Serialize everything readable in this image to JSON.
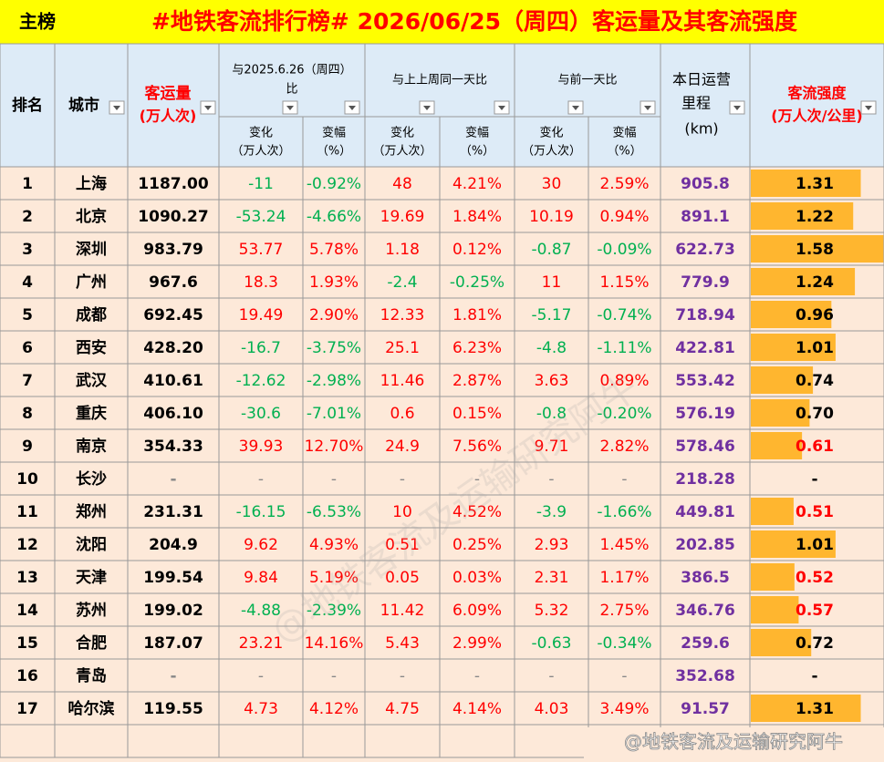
{
  "header": {
    "tag": "主榜",
    "title": "#地铁客流排行榜# 2026/06/25（周四）客运量及其客流强度"
  },
  "table": {
    "columns": {
      "rank": "排名",
      "city": "城市",
      "volume": [
        "客运量",
        "(万人次)"
      ],
      "yoy": [
        "与2025.6.26（周四）",
        "比"
      ],
      "wow": "与上上周同一天比",
      "dod": "与前一天比",
      "change": [
        "变化",
        "（万人次）"
      ],
      "pct": [
        "变幅",
        "（%）"
      ],
      "length": [
        "本日运营",
        "里程",
        "(km)"
      ],
      "intensity": [
        "客流强度",
        "(万人次/公里)"
      ]
    },
    "rows": [
      [
        "1",
        "上海",
        "1187.00",
        "-11",
        "-0.92%",
        "48",
        "4.21%",
        "30",
        "2.59%",
        "905.8",
        "1.31"
      ],
      [
        "2",
        "北京",
        "1090.27",
        "-53.24",
        "-4.66%",
        "19.69",
        "1.84%",
        "10.19",
        "0.94%",
        "891.1",
        "1.22"
      ],
      [
        "3",
        "深圳",
        "983.79",
        "53.77",
        "5.78%",
        "1.18",
        "0.12%",
        "-0.87",
        "-0.09%",
        "622.73",
        "1.58"
      ],
      [
        "4",
        "广州",
        "967.6",
        "18.3",
        "1.93%",
        "-2.4",
        "-0.25%",
        "11",
        "1.15%",
        "779.9",
        "1.24"
      ],
      [
        "5",
        "成都",
        "692.45",
        "19.49",
        "2.90%",
        "12.33",
        "1.81%",
        "-5.17",
        "-0.74%",
        "718.94",
        "0.96"
      ],
      [
        "6",
        "西安",
        "428.20",
        "-16.7",
        "-3.75%",
        "25.1",
        "6.23%",
        "-4.8",
        "-1.11%",
        "422.81",
        "1.01"
      ],
      [
        "7",
        "武汉",
        "410.61",
        "-12.62",
        "-2.98%",
        "11.46",
        "2.87%",
        "3.63",
        "0.89%",
        "553.42",
        "0.74"
      ],
      [
        "8",
        "重庆",
        "406.10",
        "-30.6",
        "-7.01%",
        "0.6",
        "0.15%",
        "-0.8",
        "-0.20%",
        "576.19",
        "0.70"
      ],
      [
        "9",
        "南京",
        "354.33",
        "39.93",
        "12.70%",
        "24.9",
        "7.56%",
        "9.71",
        "2.82%",
        "578.46",
        "0.61"
      ],
      [
        "10",
        "长沙",
        "-",
        "-",
        "-",
        "-",
        "-",
        "-",
        "-",
        "218.28",
        "-"
      ],
      [
        "11",
        "郑州",
        "231.31",
        "-16.15",
        "-6.53%",
        "10",
        "4.52%",
        "-3.9",
        "-1.66%",
        "449.81",
        "0.51"
      ],
      [
        "12",
        "沈阳",
        "204.9",
        "9.62",
        "4.93%",
        "0.51",
        "0.25%",
        "2.93",
        "1.45%",
        "202.85",
        "1.01"
      ],
      [
        "13",
        "天津",
        "199.54",
        "9.84",
        "5.19%",
        "0.05",
        "0.03%",
        "2.31",
        "1.17%",
        "386.5",
        "0.52"
      ],
      [
        "14",
        "苏州",
        "199.02",
        "-4.88",
        "-2.39%",
        "11.42",
        "6.09%",
        "5.32",
        "2.75%",
        "346.76",
        "0.57"
      ],
      [
        "15",
        "合肥",
        "187.07",
        "23.21",
        "14.16%",
        "5.43",
        "2.99%",
        "-0.63",
        "-0.34%",
        "259.6",
        "0.72"
      ],
      [
        "16",
        "青岛",
        "-",
        "-",
        "-",
        "-",
        "-",
        "-",
        "-",
        "352.68",
        "-"
      ],
      [
        "17",
        "哈尔滨",
        "119.55",
        "4.73",
        "4.12%",
        "4.75",
        "4.14%",
        "4.03",
        "3.49%",
        "91.57",
        "1.31"
      ]
    ]
  },
  "watermark": "@地铁客流及运输研究阿牛"
}
